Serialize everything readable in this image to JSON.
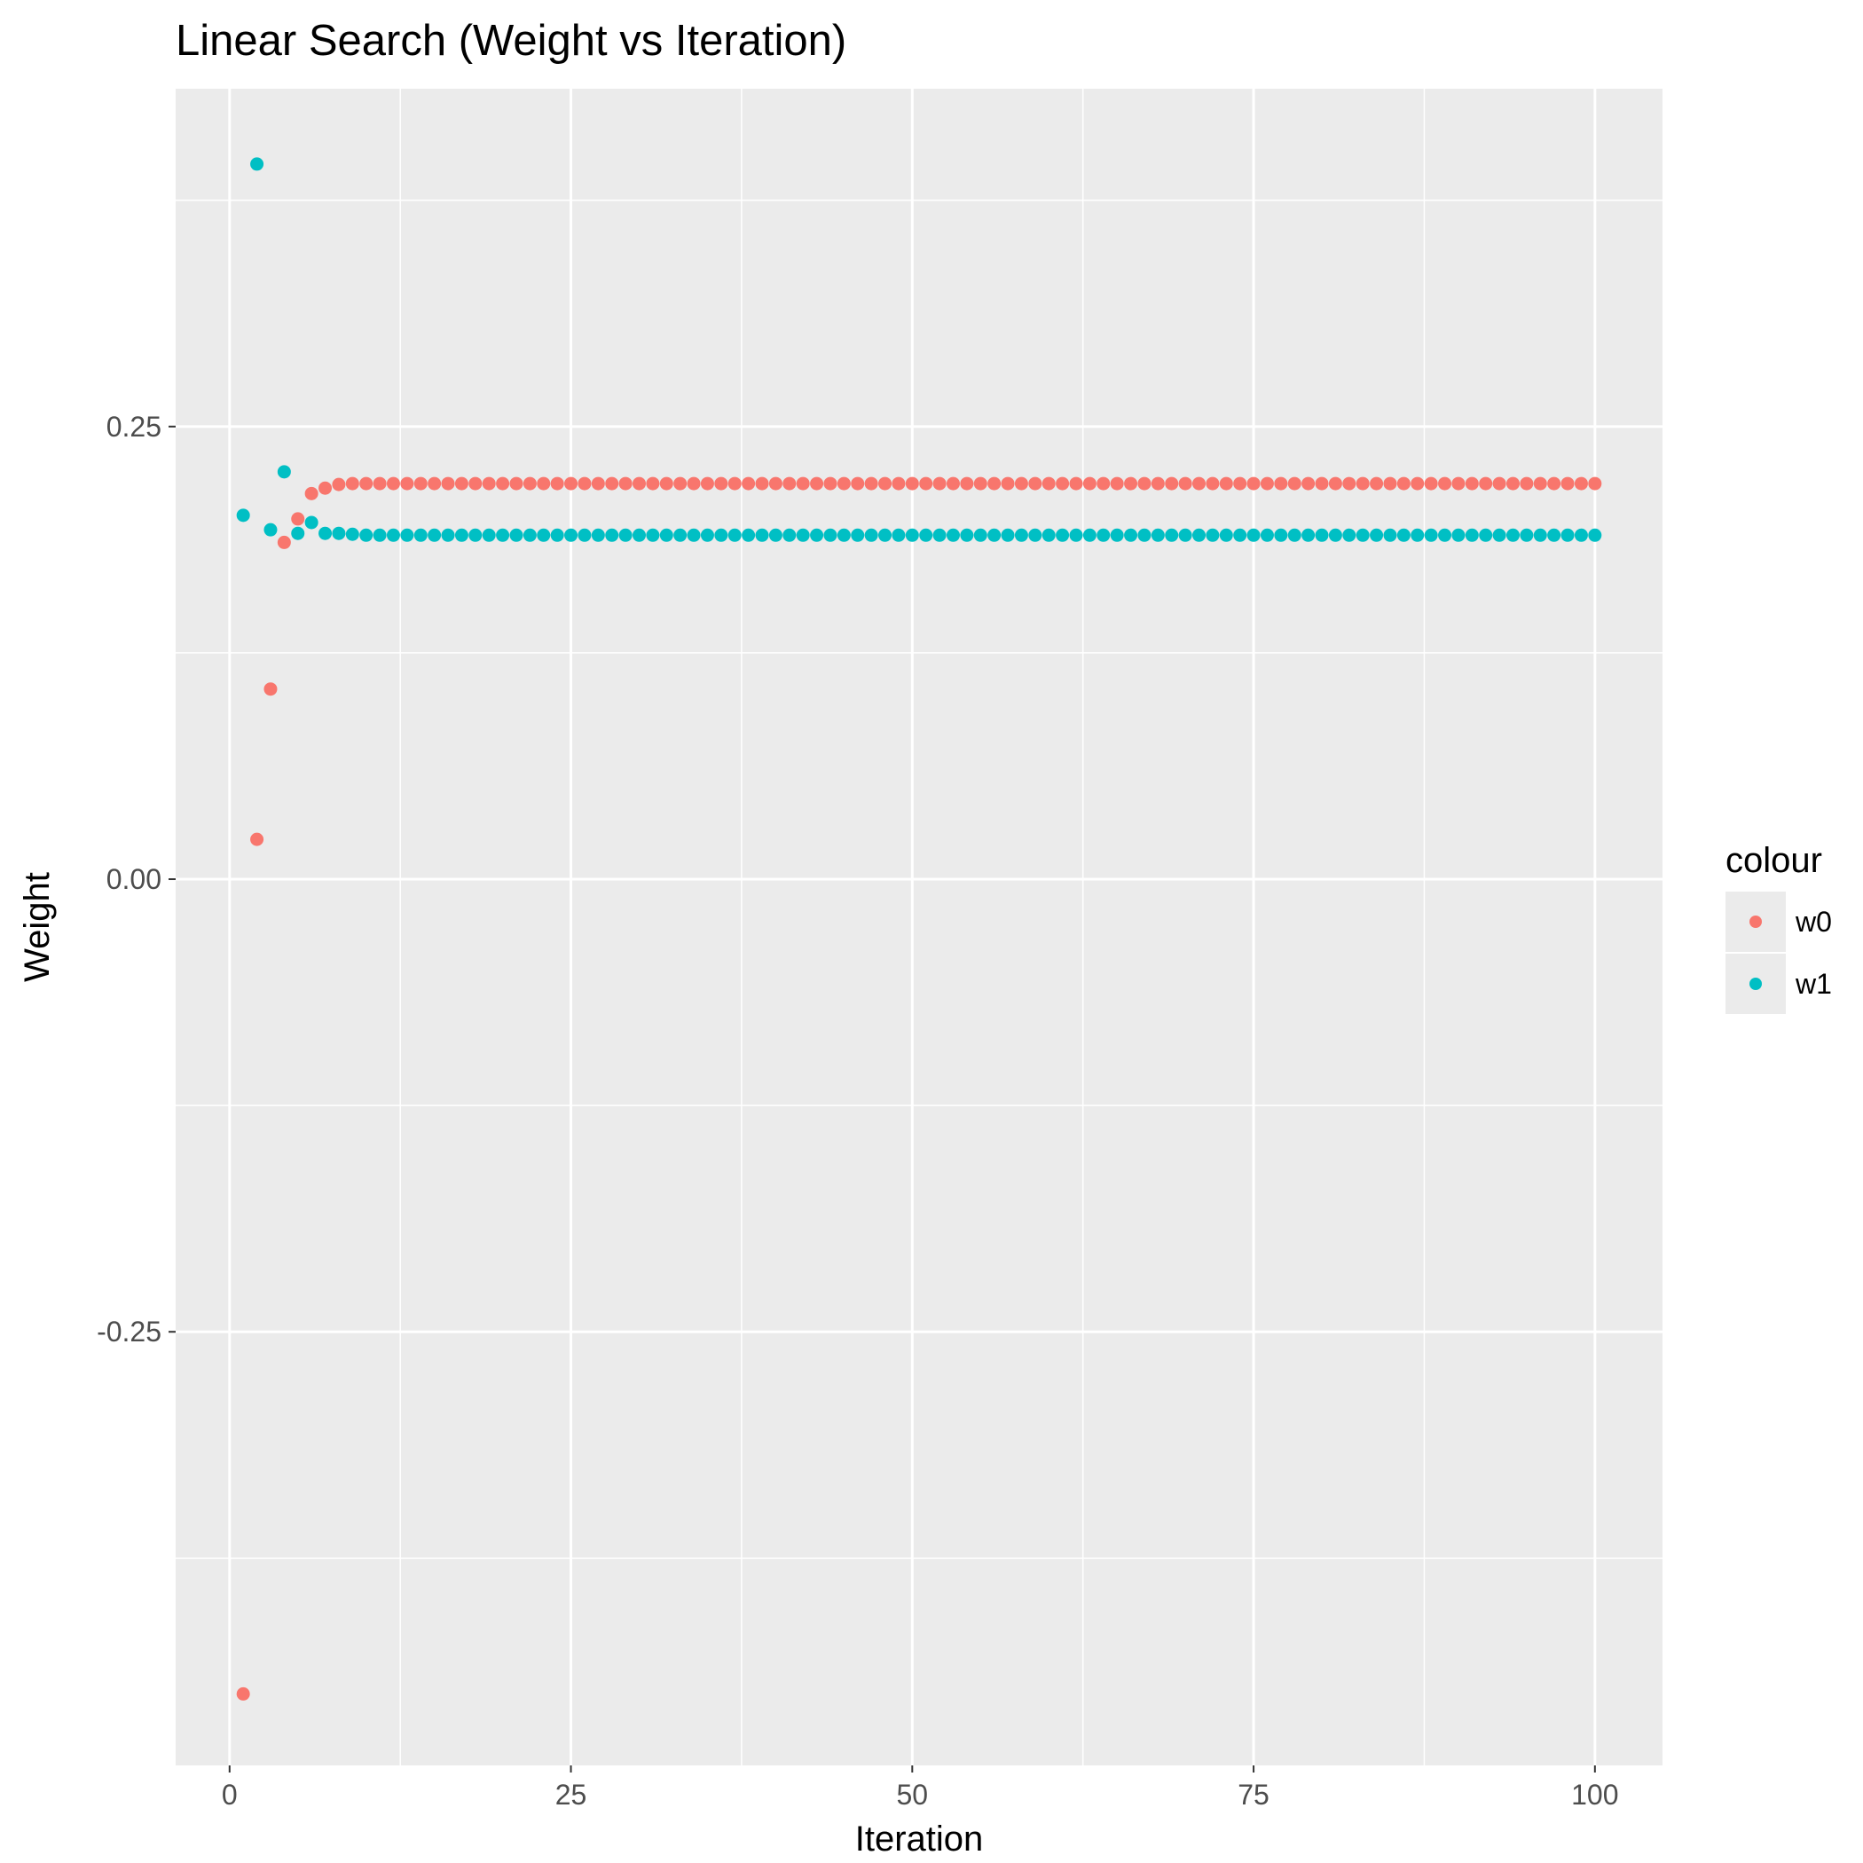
{
  "chart_data": {
    "type": "scatter",
    "title": "Linear Search (Weight vs Iteration)",
    "xlabel": "Iteration",
    "ylabel": "Weight",
    "xlim": [
      -3.95,
      104.95
    ],
    "ylim": [
      -0.4895,
      0.4366
    ],
    "x_ticks": [
      0,
      25,
      50,
      75,
      100
    ],
    "x_tick_labels": [
      "0",
      "25",
      "50",
      "75",
      "100"
    ],
    "y_ticks": [
      -0.25,
      0,
      0.25
    ],
    "y_tick_labels": [
      "-0.25",
      "0.00",
      "0.25"
    ],
    "x_minor_ticks": [
      12.5,
      37.5,
      62.5,
      87.5
    ],
    "y_minor_ticks": [
      -0.375,
      -0.125,
      0.125,
      0.375
    ],
    "grid": true,
    "background": "#ebebeb",
    "legend": {
      "title": "colour",
      "position": "right",
      "entries": [
        "w0",
        "w1"
      ]
    },
    "series": [
      {
        "name": "w0",
        "color": "#F8766D",
        "x": "1..100",
        "initial_values": [
          -0.45,
          0.022,
          0.105,
          0.186,
          0.199,
          0.213,
          0.216,
          0.218,
          0.2185
        ],
        "steady_value": 0.2185
      },
      {
        "name": "w1",
        "color": "#00BFC4",
        "x": "1..100",
        "initial_values": [
          0.201,
          0.395,
          0.193,
          0.225,
          0.191,
          0.197,
          0.191,
          0.191,
          0.1905
        ],
        "steady_value": 0.19
      }
    ]
  }
}
